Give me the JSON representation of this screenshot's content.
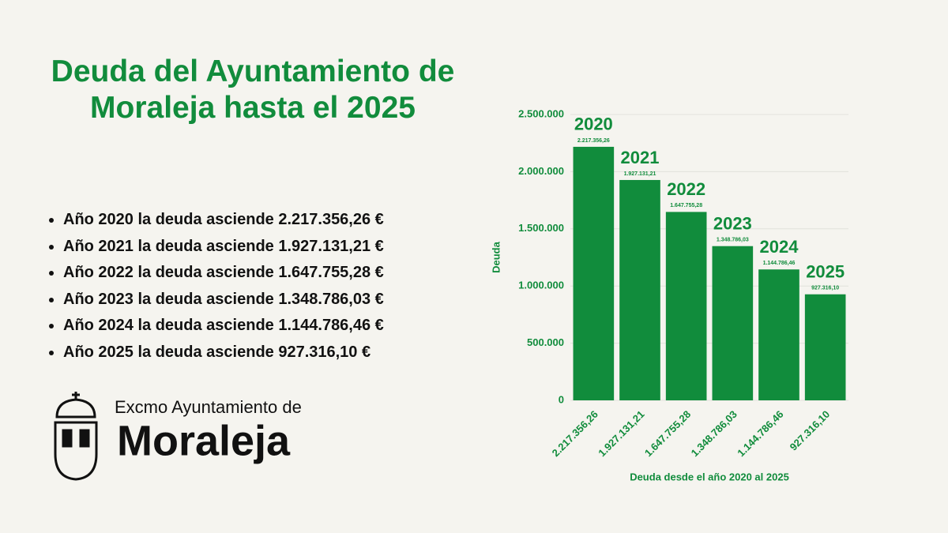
{
  "title": "Deuda del Ayuntamiento de Moraleja hasta el 2025",
  "bullets": [
    "Año 2020 la deuda asciende 2.217.356,26 €",
    "Año 2021  la deuda asciende 1.927.131,21 €",
    "Año 2022 la deuda asciende 1.647.755,28 €",
    "Año 2023 la deuda asciende 1.348.786,03 €",
    "Año 2024 la deuda asciende 1.144.786,46 €",
    "Año 2025 la deuda asciende 927.316,10 €"
  ],
  "logo": {
    "subtitle": "Excmo Ayuntamiento de",
    "name": "Moraleja"
  },
  "chart_data": {
    "type": "bar",
    "categories": [
      "2.217.356,26",
      "1.927.131,21",
      "1.647.755,28",
      "1.348.786,03",
      "1.144.786,46",
      "927.316,10"
    ],
    "values": [
      2217356.26,
      1927131.21,
      1647755.28,
      1348786.03,
      1144786.46,
      927316.1
    ],
    "value_labels": [
      "2.217.356,26",
      "1.927.131,21",
      "1.647.755,28",
      "1.348.786,03",
      "1.144.786,46",
      "927.316,10"
    ],
    "annotations": [
      "2020",
      "2021",
      "2022",
      "2023",
      "2024",
      "2025"
    ],
    "color": "#118c3c",
    "ylabel": "Deuda",
    "xlabel": "Deuda desde el año 2020 al 2025",
    "ylim": [
      0,
      2500000
    ],
    "yticks": [
      0,
      {
        "value": 500000,
        "label": "500.000"
      },
      {
        "value": 1000000,
        "label": "1.000.000"
      },
      {
        "value": 1500000,
        "label": "1.500.000"
      },
      {
        "value": 2000000,
        "label": "2.000.000"
      },
      {
        "value": 2500000,
        "label": "2.500.000"
      }
    ],
    "grid": true
  }
}
